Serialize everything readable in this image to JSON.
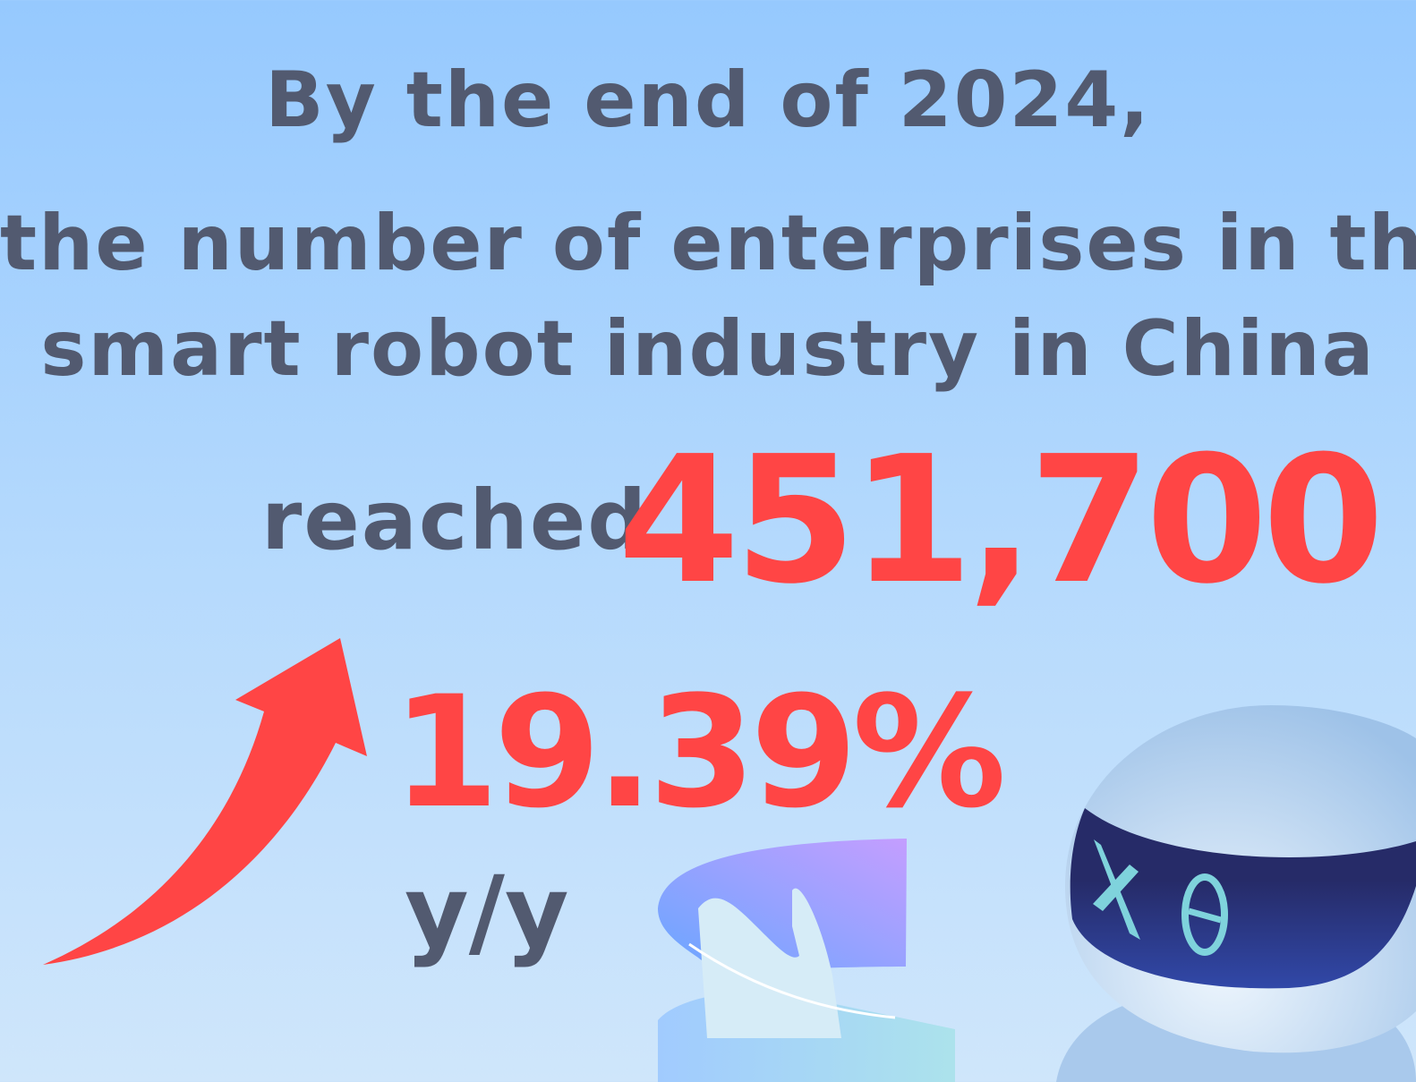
{
  "headline": {
    "line1": "By the end of 2024,",
    "line2": "the number of enterprises in the",
    "line3": "smart robot industry in China",
    "reached_label": "reached",
    "count_value": "451,700",
    "growth_value": "19.39%",
    "growth_unit": "y/y"
  },
  "colors": {
    "text": "#525a70",
    "accent": "#ff4545",
    "background_top": "#96c9fe",
    "background_bottom": "#cfe6fb",
    "robot_visor": "#262b68",
    "robot_eyes": "#7fd3dc"
  },
  "icons": [
    "up-arrow-icon",
    "robot-illustration",
    "hologram-chart-illustration"
  ]
}
